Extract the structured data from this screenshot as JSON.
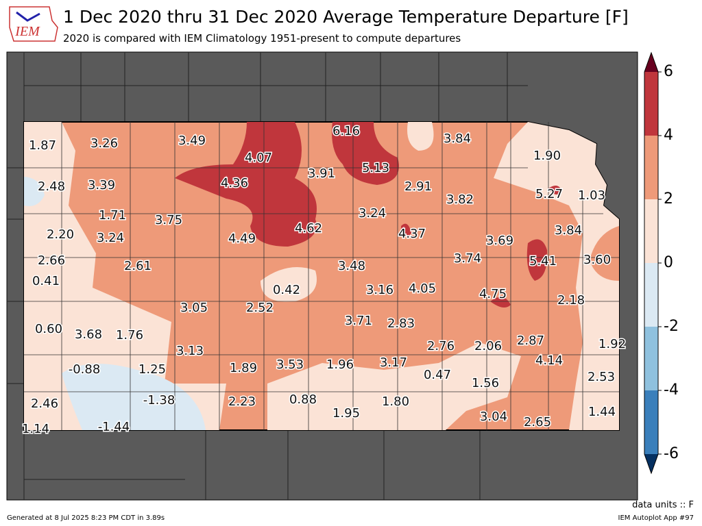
{
  "header": {
    "logo": "IEM",
    "title": "1 Dec 2020 thru 31 Dec 2020 Average Temperature Departure [F]",
    "subtitle": "2020 is compared with IEM Climatology 1951-present to compute departures"
  },
  "map": {
    "values": [
      1.87,
      3.26,
      3.49,
      4.07,
      6.16,
      3.84,
      1.9,
      2.48,
      3.39,
      4.36,
      3.91,
      5.13,
      2.91,
      3.82,
      5.27,
      1.03,
      1.71,
      3.75,
      4.62,
      3.24,
      4.37,
      3.84,
      2.2,
      3.24,
      4.49,
      3.69,
      2.66,
      2.61,
      3.48,
      3.74,
      5.41,
      3.6,
      0.41,
      0.42,
      3.16,
      4.05,
      4.75,
      2.18,
      3.05,
      2.52,
      0.6,
      3.68,
      1.76,
      3.71,
      2.83,
      3.13,
      2.76,
      2.06,
      2.87,
      1.92,
      -0.88,
      1.25,
      1.89,
      3.53,
      1.96,
      3.17,
      4.14,
      0.47,
      1.56,
      2.53,
      -1.38,
      2.23,
      0.88,
      1.8,
      2.46,
      1.95,
      3.04,
      2.65,
      1.44,
      1.14,
      -1.44
    ],
    "value_labels": [
      "1.87",
      "3.26",
      "3.49",
      "4.07",
      "6.16",
      "3.84",
      "1.90",
      "2.48",
      "3.39",
      "4.36",
      "3.91",
      "5.13",
      "2.91",
      "3.82",
      "5.27",
      "1.03",
      "1.71",
      "3.75",
      "4.62",
      "3.24",
      "4.37",
      "3.84",
      "2.20",
      "3.24",
      "4.49",
      "3.69",
      "2.66",
      "2.61",
      "3.48",
      "3.74",
      "5.41",
      "3.60",
      "0.41",
      "0.42",
      "3.16",
      "4.05",
      "4.75",
      "2.18",
      "3.05",
      "2.52",
      "0.60",
      "3.68",
      "1.76",
      "3.71",
      "2.83",
      "3.13",
      "2.76",
      "2.06",
      "2.87",
      "1.92",
      "-0.88",
      "1.25",
      "1.89",
      "3.53",
      "1.96",
      "3.17",
      "4.14",
      "0.47",
      "1.56",
      "2.53",
      "-1.38",
      "2.23",
      "0.88",
      "1.80",
      "2.46",
      "1.95",
      "3.04",
      "2.65",
      "1.44",
      "1.14",
      "-1.44"
    ]
  },
  "colorbar": {
    "ticks": [
      6,
      4,
      2,
      0,
      -2,
      -4,
      -6
    ],
    "colors": [
      "#c0363c",
      "#ee9a79",
      "#fbe3d6",
      "#dbe9f3",
      "#8fc1de",
      "#3a7fbb"
    ],
    "over_color": "#67001f",
    "under_color": "#053061"
  },
  "footer": {
    "units": "data units :: F",
    "generated": "Generated at 8 Jul 2025 8:23 PM CDT in 3.89s",
    "app": "IEM Autoplot App #97"
  }
}
